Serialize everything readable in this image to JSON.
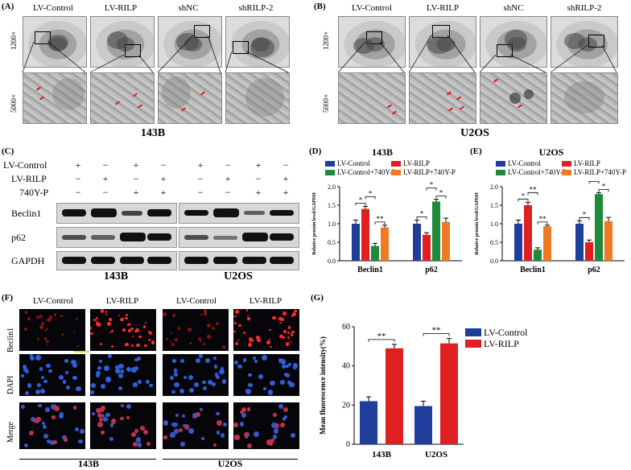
{
  "panel_A": {
    "label": "(A)",
    "columns": [
      "LV-Control",
      "LV-RILP",
      "shNC",
      "shRILP-2"
    ],
    "magnifications": [
      "1200×",
      "5000×"
    ],
    "cell_line": "143B"
  },
  "panel_B": {
    "label": "(B)",
    "columns": [
      "LV-Control",
      "LV-RILP",
      "shNC",
      "shRILP-2"
    ],
    "magnifications": [
      "1200×",
      "5000×"
    ],
    "cell_line": "U2OS"
  },
  "panel_C": {
    "label": "(C)",
    "conditions": [
      {
        "name": "LV-Control",
        "signs": [
          "+",
          "−",
          "+",
          "−",
          "+",
          "−",
          "+",
          "−"
        ]
      },
      {
        "name": "LV-RILP",
        "signs": [
          "−",
          "+",
          "−",
          "+",
          "−",
          "+",
          "−",
          "+"
        ]
      },
      {
        "name": "740Y-P",
        "signs": [
          "−",
          "−",
          "+",
          "+",
          "−",
          "−",
          "+",
          "+"
        ]
      }
    ],
    "proteins": [
      "Beclin1",
      "p62",
      "GAPDH"
    ],
    "cell_lines": [
      "143B",
      "U2OS"
    ]
  },
  "panel_F": {
    "label": "(F)",
    "columns": [
      "LV-Control",
      "LV-RILP",
      "LV-Control",
      "LV-RILP"
    ],
    "rows": [
      "Beclin1",
      "DAPI",
      "Merge"
    ],
    "cell_lines": [
      "143B",
      "U2OS"
    ]
  },
  "chart_data": [
    {
      "id": "D",
      "panel_label": "(D)",
      "type": "bar",
      "title": "143B",
      "ylabel": "Relative protein level/GAPDH",
      "ylim": [
        0,
        2.0
      ],
      "yticks": [
        "0.0",
        "0.5",
        "1.0",
        "1.5",
        "2.0"
      ],
      "categories": [
        "Beclin1",
        "p62"
      ],
      "series": [
        {
          "name": "LV-Control",
          "color": "#1f3d9b",
          "values": [
            1.0,
            1.0
          ],
          "errors": [
            0.1,
            0.1
          ]
        },
        {
          "name": "LV-RILP",
          "color": "#e02020",
          "values": [
            1.4,
            0.7
          ],
          "errors": [
            0.07,
            0.06
          ]
        },
        {
          "name": "LV-Control+740Y-P",
          "color": "#1f8a3a",
          "values": [
            0.4,
            1.6
          ],
          "errors": [
            0.07,
            0.06
          ]
        },
        {
          "name": "LV-RILP+740Y-P",
          "color": "#f07a22",
          "values": [
            0.9,
            1.05
          ],
          "errors": [
            0.06,
            0.1
          ]
        }
      ],
      "significance": [
        "*",
        "*",
        "**",
        "*",
        "*",
        "*"
      ]
    },
    {
      "id": "E",
      "panel_label": "(E)",
      "type": "bar",
      "title": "U2OS",
      "ylabel": "Relative protein level/GAPDH",
      "ylim": [
        0,
        2.0
      ],
      "yticks": [
        "0.0",
        "0.5",
        "1.0",
        "1.5",
        "2.0"
      ],
      "categories": [
        "Beclin1",
        "p62"
      ],
      "series": [
        {
          "name": "LV-Control",
          "color": "#1f3d9b",
          "values": [
            1.0,
            1.0
          ],
          "errors": [
            0.1,
            0.08
          ]
        },
        {
          "name": "LV-RILP",
          "color": "#e02020",
          "values": [
            1.5,
            0.5
          ],
          "errors": [
            0.08,
            0.06
          ]
        },
        {
          "name": "LV-Control+740Y-P",
          "color": "#1f8a3a",
          "values": [
            0.3,
            1.8
          ],
          "errors": [
            0.05,
            0.04
          ]
        },
        {
          "name": "LV-RILP+740Y-P",
          "color": "#f07a22",
          "values": [
            0.93,
            1.07
          ],
          "errors": [
            0.03,
            0.1
          ]
        }
      ],
      "significance": [
        "*",
        "**",
        "**",
        "*",
        "*",
        "**"
      ]
    },
    {
      "id": "G",
      "panel_label": "(G)",
      "type": "bar",
      "title": "",
      "ylabel": "Mean fluorescence intensity(%)",
      "ylim": [
        0,
        60
      ],
      "yticks": [
        "0",
        "20",
        "40",
        "60"
      ],
      "categories": [
        "143B",
        "U2OS"
      ],
      "series": [
        {
          "name": "LV-Control",
          "color": "#1f3d9b",
          "values": [
            22,
            19.5
          ],
          "errors": [
            2.2,
            2.5
          ]
        },
        {
          "name": "LV-RILP",
          "color": "#e02020",
          "values": [
            49,
            51.5
          ],
          "errors": [
            2.0,
            2.5
          ]
        }
      ],
      "significance": [
        "**",
        "**"
      ]
    }
  ]
}
